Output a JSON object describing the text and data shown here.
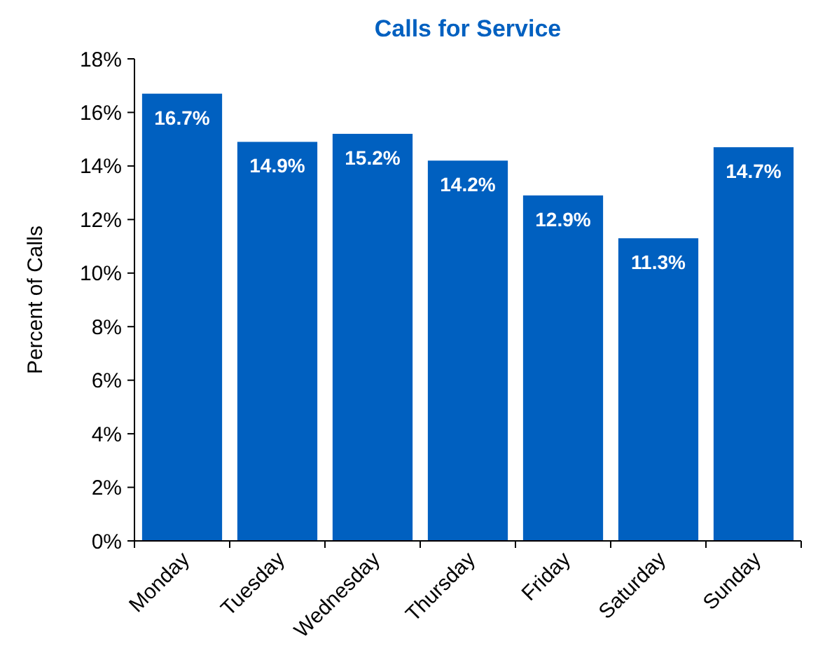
{
  "chart_data": {
    "type": "bar",
    "title": "Calls for Service",
    "ylabel": "Percent of Calls",
    "categories": [
      "Monday",
      "Tuesday",
      "Wednesday",
      "Thursday",
      "Friday",
      "Saturday",
      "Sunday"
    ],
    "values": [
      16.7,
      14.9,
      15.2,
      14.2,
      12.9,
      11.3,
      14.7
    ],
    "value_labels": [
      "16.7%",
      "14.9%",
      "15.2%",
      "14.2%",
      "12.9%",
      "11.3%",
      "14.7%"
    ],
    "color": "#0060c0",
    "ylim": [
      0,
      18
    ],
    "yticks": [
      {
        "value": 0,
        "label": "0%"
      },
      {
        "value": 2,
        "label": "2%"
      },
      {
        "value": 4,
        "label": "4%"
      },
      {
        "value": 6,
        "label": "6%"
      },
      {
        "value": 8,
        "label": "8%"
      },
      {
        "value": 10,
        "label": "10%"
      },
      {
        "value": 12,
        "label": "12%"
      },
      {
        "value": 14,
        "label": "14%"
      },
      {
        "value": 16,
        "label": "16%"
      },
      {
        "value": 18,
        "label": "18%"
      }
    ],
    "grid": false
  }
}
